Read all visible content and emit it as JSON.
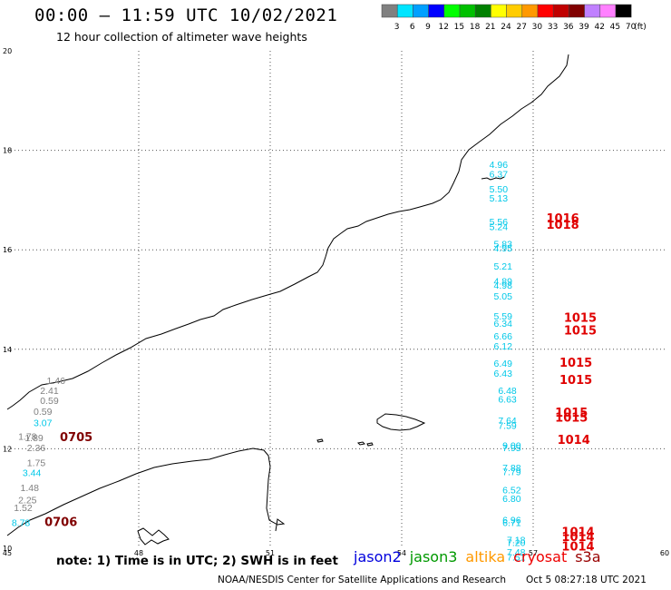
{
  "header": {
    "title": "00:00 – 11:59 UTC 10/02/2021",
    "subtitle": "12 hour collection of altimeter wave heights"
  },
  "color_scale": {
    "unit": "(ft)",
    "bins": [
      {
        "label": "3",
        "color": "#808080"
      },
      {
        "label": "6",
        "color": "#00e5ff"
      },
      {
        "label": "9",
        "color": "#00a0ff"
      },
      {
        "label": "12",
        "color": "#0000ff"
      },
      {
        "label": "15",
        "color": "#00ff00"
      },
      {
        "label": "18",
        "color": "#00c000"
      },
      {
        "label": "21",
        "color": "#008000"
      },
      {
        "label": "24",
        "color": "#ffff00"
      },
      {
        "label": "27",
        "color": "#ffcc00"
      },
      {
        "label": "30",
        "color": "#ff9900"
      },
      {
        "label": "33",
        "color": "#ff0000"
      },
      {
        "label": "36",
        "color": "#c00000"
      },
      {
        "label": "39",
        "color": "#800000"
      },
      {
        "label": "42",
        "color": "#c080ff"
      },
      {
        "label": "45",
        "color": "#ff80ff"
      },
      {
        "label": "70",
        "color": "#000000"
      }
    ]
  },
  "axes": {
    "lon_ticks": [
      "45",
      "48",
      "51",
      "54",
      "57",
      "60"
    ],
    "lat_ticks": [
      "10",
      "12",
      "14",
      "16",
      "18",
      "20"
    ]
  },
  "observations": [
    {
      "lon": 56.0,
      "lat": 17.65,
      "text": "4.96",
      "color": "#00c8e8"
    },
    {
      "lon": 56.0,
      "lat": 17.45,
      "text": "6.37",
      "color": "#00c8e8"
    },
    {
      "lon": 56.0,
      "lat": 17.15,
      "text": "5.50",
      "color": "#00c8e8"
    },
    {
      "lon": 56.0,
      "lat": 16.97,
      "text": "5.13",
      "color": "#00c8e8"
    },
    {
      "lon": 56.0,
      "lat": 16.5,
      "text": "5.56",
      "color": "#00c8e8"
    },
    {
      "lon": 56.0,
      "lat": 16.4,
      "text": "5.24",
      "color": "#00c8e8"
    },
    {
      "lon": 56.1,
      "lat": 16.05,
      "text": "5.83",
      "color": "#00c8e8"
    },
    {
      "lon": 56.1,
      "lat": 15.97,
      "text": "4.95",
      "color": "#00c8e8"
    },
    {
      "lon": 56.1,
      "lat": 15.6,
      "text": "5.21",
      "color": "#00c8e8"
    },
    {
      "lon": 56.1,
      "lat": 15.3,
      "text": "4.89",
      "color": "#00c8e8"
    },
    {
      "lon": 56.1,
      "lat": 15.22,
      "text": "4.98",
      "color": "#00c8e8"
    },
    {
      "lon": 56.1,
      "lat": 15.0,
      "text": "5.05",
      "color": "#00c8e8"
    },
    {
      "lon": 56.1,
      "lat": 14.6,
      "text": "5.59",
      "color": "#00c8e8"
    },
    {
      "lon": 56.1,
      "lat": 14.45,
      "text": "6.34",
      "color": "#00c8e8"
    },
    {
      "lon": 56.1,
      "lat": 14.2,
      "text": "6.66",
      "color": "#00c8e8"
    },
    {
      "lon": 56.1,
      "lat": 14.0,
      "text": "6.12",
      "color": "#00c8e8"
    },
    {
      "lon": 56.1,
      "lat": 13.65,
      "text": "6.49",
      "color": "#00c8e8"
    },
    {
      "lon": 56.1,
      "lat": 13.45,
      "text": "6.43",
      "color": "#00c8e8"
    },
    {
      "lon": 56.2,
      "lat": 13.1,
      "text": "6.48",
      "color": "#00c8e8"
    },
    {
      "lon": 56.2,
      "lat": 12.93,
      "text": "6.63",
      "color": "#00c8e8"
    },
    {
      "lon": 56.2,
      "lat": 12.5,
      "text": "7.64",
      "color": "#00c8e8"
    },
    {
      "lon": 56.2,
      "lat": 12.4,
      "text": "7.59",
      "color": "#00c8e8"
    },
    {
      "lon": 56.3,
      "lat": 12.0,
      "text": "9.00",
      "color": "#00c8e8"
    },
    {
      "lon": 56.3,
      "lat": 11.95,
      "text": "7.95",
      "color": "#00c8e8"
    },
    {
      "lon": 56.3,
      "lat": 11.55,
      "text": "7.88",
      "color": "#00c8e8"
    },
    {
      "lon": 56.3,
      "lat": 11.47,
      "text": "7.79",
      "color": "#00c8e8"
    },
    {
      "lon": 56.3,
      "lat": 11.1,
      "text": "6.52",
      "color": "#00c8e8"
    },
    {
      "lon": 56.3,
      "lat": 10.93,
      "text": "6.80",
      "color": "#00c8e8"
    },
    {
      "lon": 56.3,
      "lat": 10.5,
      "text": "6.96",
      "color": "#00c8e8"
    },
    {
      "lon": 56.3,
      "lat": 10.45,
      "text": "6.71",
      "color": "#00c8e8"
    },
    {
      "lon": 56.4,
      "lat": 10.1,
      "text": "7.18",
      "color": "#00c8e8"
    },
    {
      "lon": 56.4,
      "lat": 10.05,
      "text": "7.20",
      "color": "#00c8e8"
    },
    {
      "lon": 56.4,
      "lat": 9.85,
      "text": "7.48",
      "color": "#00c8e8"
    },
    {
      "lon": 56.4,
      "lat": 9.75,
      "text": "7.51",
      "color": "#00c8e8"
    },
    {
      "lon": 45.9,
      "lat": 13.3,
      "text": "1.46",
      "color": "#808080"
    },
    {
      "lon": 45.75,
      "lat": 13.1,
      "text": "2.41",
      "color": "#808080"
    },
    {
      "lon": 45.75,
      "lat": 12.9,
      "text": "0.59",
      "color": "#808080"
    },
    {
      "lon": 45.6,
      "lat": 12.68,
      "text": "0.59",
      "color": "#808080"
    },
    {
      "lon": 45.6,
      "lat": 12.45,
      "text": "3.07",
      "color": "#00c8e8"
    },
    {
      "lon": 45.25,
      "lat": 12.18,
      "text": "1.78",
      "color": "#808080"
    },
    {
      "lon": 45.4,
      "lat": 12.15,
      "text": "1.89",
      "color": "#808080"
    },
    {
      "lon": 45.45,
      "lat": 11.95,
      "text": "2.36",
      "color": "#808080"
    },
    {
      "lon": 45.45,
      "lat": 11.65,
      "text": "1.75",
      "color": "#808080"
    },
    {
      "lon": 45.35,
      "lat": 11.45,
      "text": "3.44",
      "color": "#00c8e8"
    },
    {
      "lon": 45.3,
      "lat": 11.15,
      "text": "1.48",
      "color": "#808080"
    },
    {
      "lon": 45.25,
      "lat": 10.9,
      "text": "2.25",
      "color": "#808080"
    },
    {
      "lon": 45.15,
      "lat": 10.75,
      "text": "1.52",
      "color": "#808080"
    },
    {
      "lon": 45.1,
      "lat": 10.45,
      "text": "8.78",
      "color": "#00c8e8"
    }
  ],
  "pressure_labels": [
    {
      "lon": 57.3,
      "lat": 16.55,
      "text": "1016",
      "color": "#e00000"
    },
    {
      "lon": 57.3,
      "lat": 16.42,
      "text": "1018",
      "color": "#e00000"
    },
    {
      "lon": 57.7,
      "lat": 14.55,
      "text": "1015",
      "color": "#e00000"
    },
    {
      "lon": 57.7,
      "lat": 14.3,
      "text": "1015",
      "color": "#e00000"
    },
    {
      "lon": 57.6,
      "lat": 13.65,
      "text": "1015",
      "color": "#e00000"
    },
    {
      "lon": 57.6,
      "lat": 13.3,
      "text": "1015",
      "color": "#e00000"
    },
    {
      "lon": 57.5,
      "lat": 12.65,
      "text": "1015",
      "color": "#e00000"
    },
    {
      "lon": 57.5,
      "lat": 12.55,
      "text": "1015",
      "color": "#e00000"
    },
    {
      "lon": 57.55,
      "lat": 12.1,
      "text": "1014",
      "color": "#e00000"
    },
    {
      "lon": 57.65,
      "lat": 10.25,
      "text": "1014",
      "color": "#e00000"
    },
    {
      "lon": 57.65,
      "lat": 10.15,
      "text": "1014",
      "color": "#e00000"
    },
    {
      "lon": 57.65,
      "lat": 9.95,
      "text": "1014",
      "color": "#e00000"
    },
    {
      "lon": 46.2,
      "lat": 12.15,
      "text": "0705",
      "color": "#800000"
    },
    {
      "lon": 45.85,
      "lat": 10.45,
      "text": "0706",
      "color": "#800000"
    }
  ],
  "footer": {
    "note": "note: 1) Time is in UTC; 2) SWH is in feet",
    "satellites": [
      {
        "name": "jason2",
        "color": "#0000dd"
      },
      {
        "name": "jason3",
        "color": "#009900"
      },
      {
        "name": "altika",
        "color": "#ff9900"
      },
      {
        "name": "cryosat",
        "color": "#ee0000"
      },
      {
        "name": "s3a",
        "color": "#990000"
      }
    ],
    "credit": "NOAA/NESDIS Center for Satellite Applications and Research",
    "timestamp": "Oct  5 08:27:18 UTC 2021"
  }
}
